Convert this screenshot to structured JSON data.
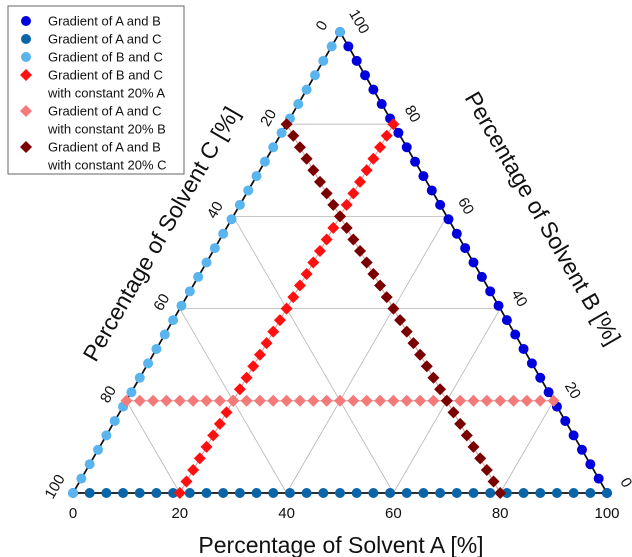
{
  "chart_data": {
    "type": "scatter",
    "subtype": "ternary",
    "grid": true,
    "axes": {
      "a": {
        "label": "Percentage of Solvent A [%]",
        "ticks": [
          "0",
          "20",
          "40",
          "60",
          "80",
          "100"
        ],
        "range": [
          0,
          100
        ]
      },
      "b": {
        "label": "Percentage of Solvent B [%]",
        "ticks": [
          "0",
          "20",
          "40",
          "60",
          "80",
          "100"
        ],
        "range": [
          0,
          100
        ]
      },
      "c": {
        "label": "Percentage of Solvent C [%]",
        "ticks": [
          "0",
          "20",
          "40",
          "60",
          "80",
          "100"
        ],
        "range": [
          0,
          100
        ]
      }
    },
    "legend_position": "top-left",
    "series": [
      {
        "name": "Gradient of A and B",
        "marker": "circle",
        "color": "#0000dd",
        "fixed": "C",
        "fixed_value": 0,
        "step": 3.125
      },
      {
        "name": "Gradient of A and C",
        "marker": "circle",
        "color": "#0a64a8",
        "fixed": "B",
        "fixed_value": 0,
        "step": 3.125
      },
      {
        "name": "Gradient of B and C",
        "marker": "circle",
        "color": "#5ab4ee",
        "fixed": "A",
        "fixed_value": 0,
        "step": 3.125
      },
      {
        "name": "Gradient of B and C with constant 20% A",
        "marker": "diamond",
        "color": "#ff1010",
        "fixed": "A",
        "fixed_value": 20,
        "step": 3.125
      },
      {
        "name": "Gradient of A and C with constant 20% B",
        "marker": "diamond",
        "color": "#f47a7a",
        "fixed": "B",
        "fixed_value": 20,
        "step": 3.125
      },
      {
        "name": "Gradient of A and B with constant 20% C",
        "marker": "diamond",
        "color": "#7a0000",
        "fixed": "C",
        "fixed_value": 20,
        "step": 3.125
      }
    ],
    "legend": [
      {
        "line1": "Gradient of A and B",
        "line2": ""
      },
      {
        "line1": "Gradient of A and C",
        "line2": ""
      },
      {
        "line1": "Gradient of B and C",
        "line2": ""
      },
      {
        "line1": "Gradient of B and C",
        "line2": "with constant 20% A"
      },
      {
        "line1": "Gradient of A and C",
        "line2": "with constant 20% B"
      },
      {
        "line1": "Gradient of A and B",
        "line2": "with constant 20% C"
      }
    ]
  }
}
